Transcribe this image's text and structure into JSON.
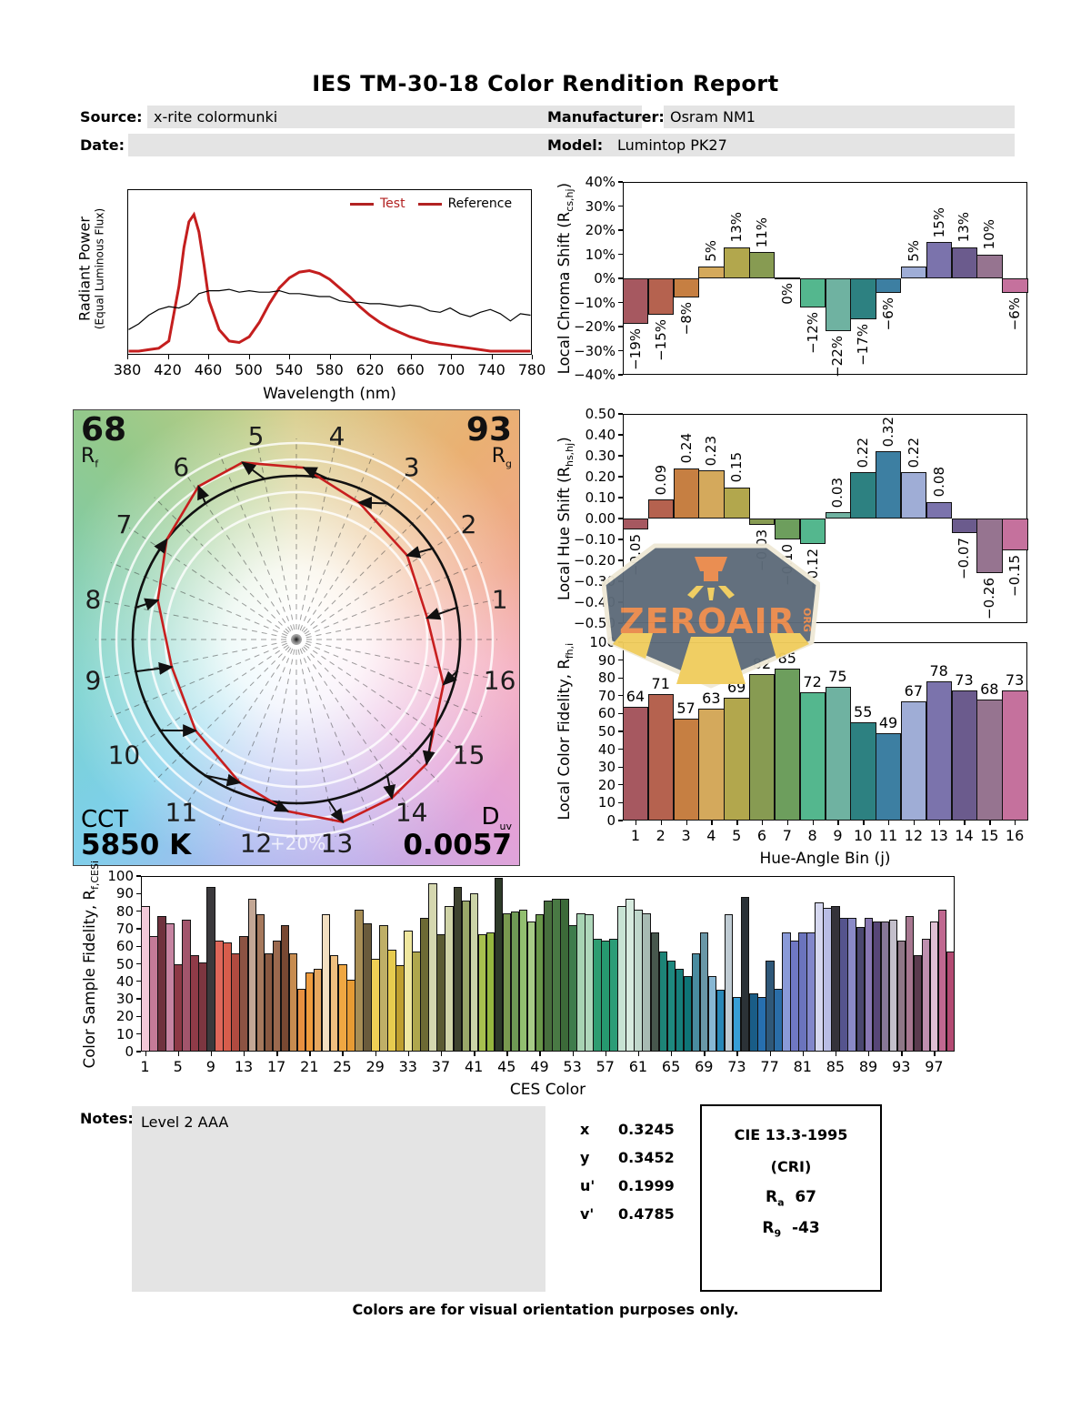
{
  "title": "IES TM-30-18 Color Rendition Report",
  "meta": {
    "source_label": "Source:",
    "source_value": "x-rite colormunki",
    "date_label": "Date:",
    "date_value": "",
    "manufacturer_label": "Manufacturer:",
    "manufacturer_value": "Osram NM1",
    "model_label": "Model:",
    "model_value": "Lumintop PK27"
  },
  "cvg": {
    "rf_value": "68",
    "rf_base": "R",
    "rf_sub": "f",
    "rg_value": "93",
    "rg_base": "R",
    "rg_sub": "g",
    "cct_label": "CCT",
    "cct_value": "5850 K",
    "duv_base": "D",
    "duv_sub": "uv",
    "duv_value": "0.0057",
    "ring_label": "+20%",
    "bins": [
      "1",
      "2",
      "3",
      "4",
      "5",
      "6",
      "7",
      "8",
      "9",
      "10",
      "11",
      "12",
      "13",
      "14",
      "15",
      "16"
    ]
  },
  "watermark": {
    "name": "ZEROAIR",
    "org": "ORG"
  },
  "notes": {
    "label": "Notes:",
    "value": "Level 2 AAA"
  },
  "chromaticity": [
    {
      "label": "x",
      "value": "0.3245"
    },
    {
      "label": "y",
      "value": "0.3452"
    },
    {
      "label": "u'",
      "value": "0.1999"
    },
    {
      "label": "v'",
      "value": "0.4785"
    }
  ],
  "cri": {
    "title": "CIE 13.3-1995",
    "subtitle": "(CRI)",
    "ra_base": "R",
    "ra_sub": "a",
    "ra_value": "67",
    "r9_base": "R",
    "r9_sub": "9",
    "r9_value": "-43"
  },
  "footer": "Colors are for visual orientation purposes only.",
  "bin_colors": [
    "#a65860",
    "#b5624f",
    "#c67f42",
    "#d4a95c",
    "#b2a74d",
    "#879b52",
    "#6d9e5d",
    "#54b78e",
    "#6fb2a1",
    "#2d8181",
    "#3d7fa2",
    "#9fadd6",
    "#7b73ac",
    "#6b5b8d",
    "#967490",
    "#c5719d"
  ],
  "chart_data": [
    {
      "id": "spd",
      "type": "line",
      "xlabel": "Wavelength (nm)",
      "ylabel_lines": [
        "Radiant Power",
        "(Equal Luminous Flux)"
      ],
      "xlim": [
        380,
        780
      ],
      "x_ticks": [
        380,
        420,
        460,
        500,
        540,
        580,
        620,
        660,
        700,
        740,
        780
      ],
      "legend": [
        {
          "label": "Test",
          "text_color": "#b22222"
        },
        {
          "label": "Reference",
          "text_color": "#000000"
        }
      ],
      "series": [
        {
          "name": "Test",
          "color": "#c41e1e",
          "width": 3,
          "x": [
            380,
            390,
            400,
            410,
            420,
            430,
            435,
            440,
            445,
            450,
            455,
            460,
            470,
            480,
            490,
            500,
            510,
            520,
            530,
            540,
            550,
            560,
            570,
            580,
            590,
            600,
            610,
            620,
            630,
            640,
            650,
            660,
            670,
            680,
            690,
            700,
            710,
            720,
            730,
            740,
            750,
            760,
            770,
            780
          ],
          "values": [
            0,
            0,
            0.01,
            0.02,
            0.07,
            0.45,
            0.72,
            0.9,
            0.95,
            0.83,
            0.6,
            0.35,
            0.15,
            0.07,
            0.06,
            0.1,
            0.2,
            0.33,
            0.44,
            0.51,
            0.55,
            0.56,
            0.54,
            0.5,
            0.44,
            0.38,
            0.31,
            0.25,
            0.2,
            0.16,
            0.13,
            0.1,
            0.08,
            0.06,
            0.05,
            0.04,
            0.03,
            0.02,
            0.01,
            0,
            0,
            0,
            0,
            0
          ]
        },
        {
          "name": "Reference",
          "color": "#000000",
          "width": 1.2,
          "x": [
            380,
            390,
            400,
            410,
            420,
            430,
            440,
            450,
            460,
            470,
            480,
            490,
            500,
            510,
            520,
            530,
            540,
            550,
            560,
            570,
            580,
            590,
            600,
            610,
            620,
            630,
            640,
            650,
            660,
            670,
            680,
            690,
            700,
            710,
            720,
            730,
            740,
            750,
            760,
            770,
            780
          ],
          "values": [
            0.15,
            0.19,
            0.25,
            0.29,
            0.31,
            0.3,
            0.33,
            0.4,
            0.42,
            0.42,
            0.43,
            0.41,
            0.42,
            0.41,
            0.41,
            0.42,
            0.4,
            0.4,
            0.39,
            0.38,
            0.38,
            0.35,
            0.34,
            0.34,
            0.33,
            0.33,
            0.32,
            0.31,
            0.32,
            0.31,
            0.28,
            0.27,
            0.3,
            0.26,
            0.24,
            0.27,
            0.29,
            0.26,
            0.21,
            0.26,
            0.25
          ]
        }
      ]
    },
    {
      "id": "chroma",
      "type": "bar",
      "ylabel": [
        "Local Chroma Shift (R",
        "cs,hj",
        ")"
      ],
      "ylim": [
        -40,
        40
      ],
      "yticks": [
        "40%",
        "30%",
        "20%",
        "10%",
        "0%",
        "−10%",
        "−20%",
        "−30%",
        "−40%"
      ],
      "categories": [
        1,
        2,
        3,
        4,
        5,
        6,
        7,
        8,
        9,
        10,
        11,
        12,
        13,
        14,
        15,
        16
      ],
      "values": [
        -19,
        -15,
        -8,
        5,
        13,
        11,
        0,
        -12,
        -22,
        -17,
        -6,
        5,
        15,
        13,
        10,
        -6
      ],
      "labels": [
        "−19%",
        "−15%",
        "−8%",
        "5%",
        "13%",
        "11%",
        "0%",
        "−12%",
        "−22%",
        "−17%",
        "−6%",
        "5%",
        "15%",
        "13%",
        "10%",
        "−6%"
      ],
      "label_rotated": true
    },
    {
      "id": "hue",
      "type": "bar",
      "ylabel": [
        "Local Hue Shift (R",
        "hs,hj",
        ")"
      ],
      "ylim": [
        -0.5,
        0.5
      ],
      "yticks": [
        "0.50",
        "0.40",
        "0.30",
        "0.20",
        "0.10",
        "0.00",
        "−0.10",
        "−0.20",
        "−0.30",
        "−0.40",
        "−0.50"
      ],
      "categories": [
        1,
        2,
        3,
        4,
        5,
        6,
        7,
        8,
        9,
        10,
        11,
        12,
        13,
        14,
        15,
        16
      ],
      "values": [
        -0.05,
        0.09,
        0.24,
        0.23,
        0.15,
        -0.03,
        -0.1,
        -0.12,
        0.03,
        0.22,
        0.32,
        0.22,
        0.08,
        -0.07,
        -0.26,
        -0.15
      ],
      "labels": [
        "−0.05",
        "0.09",
        "0.24",
        "0.23",
        "0.15",
        "−0.03",
        "−0.10",
        "−0.12",
        "0.03",
        "0.22",
        "0.32",
        "0.22",
        "0.08",
        "−0.07",
        "−0.26",
        "−0.15"
      ],
      "label_rotated": true
    },
    {
      "id": "fid",
      "type": "bar",
      "ylabel": [
        "Local Color Fidelity, R",
        "fh,i",
        ""
      ],
      "xlabel": "Hue-Angle Bin (j)",
      "ylim": [
        0,
        100
      ],
      "yticks": [
        "100",
        "90",
        "80",
        "70",
        "60",
        "50",
        "40",
        "30",
        "20",
        "10",
        "0"
      ],
      "categories": [
        "1",
        "2",
        "3",
        "4",
        "5",
        "6",
        "7",
        "8",
        "9",
        "10",
        "11",
        "12",
        "13",
        "14",
        "15",
        "16"
      ],
      "values": [
        64,
        71,
        57,
        63,
        69,
        82,
        85,
        72,
        75,
        55,
        49,
        67,
        78,
        73,
        68,
        73
      ],
      "labels": [
        "64",
        "71",
        "57",
        "63",
        "69",
        "82",
        "85",
        "72",
        "75",
        "55",
        "49",
        "67",
        "78",
        "73",
        "68",
        "73"
      ],
      "label_rotated": false
    },
    {
      "id": "ces",
      "type": "bar",
      "ylabel": [
        "Color Sample Fidelity, R",
        "f,CESi",
        ""
      ],
      "xlabel": "CES Color",
      "ylim": [
        0,
        100
      ],
      "yticks": [
        "100",
        "90",
        "80",
        "70",
        "60",
        "50",
        "40",
        "30",
        "20",
        "10",
        "0"
      ],
      "xtick_positions": [
        1,
        5,
        9,
        13,
        17,
        21,
        25,
        29,
        33,
        37,
        41,
        45,
        49,
        53,
        57,
        61,
        65,
        69,
        73,
        77,
        81,
        85,
        89,
        93,
        97
      ],
      "values": [
        83,
        66,
        77,
        73,
        50,
        75,
        55,
        51,
        94,
        63,
        62,
        56,
        66,
        87,
        78,
        56,
        63,
        72,
        56,
        36,
        45,
        47,
        78,
        55,
        50,
        41,
        81,
        73,
        53,
        72,
        58,
        49,
        69,
        57,
        76,
        96,
        67,
        83,
        94,
        86,
        90,
        67,
        68,
        99,
        79,
        80,
        81,
        74,
        78,
        86,
        87,
        87,
        72,
        79,
        78,
        64,
        63,
        64,
        83,
        87,
        81,
        79,
        68,
        57,
        52,
        47,
        43,
        56,
        68,
        43,
        35,
        78,
        31,
        88,
        33,
        31,
        52,
        36,
        68,
        63,
        68,
        68,
        85,
        82,
        83,
        76,
        76,
        71,
        76,
        74,
        74,
        75,
        63,
        77,
        55,
        64,
        74,
        81,
        57
      ],
      "colors": [
        "#f3c9d8",
        "#c47b98",
        "#6f323e",
        "#c684a2",
        "#8d3946",
        "#a2556c",
        "#8f3b48",
        "#7c3640",
        "#3b393c",
        "#df675a",
        "#d75d4c",
        "#b04a40",
        "#8c5343",
        "#c3a795",
        "#a6795d",
        "#895941",
        "#9b694e",
        "#784832",
        "#c78c50",
        "#e89040",
        "#ef9b3d",
        "#e7a75f",
        "#f2dfc1",
        "#efbf7f",
        "#efa742",
        "#e79b34",
        "#a88e55",
        "#6a5b3c",
        "#efcf55",
        "#bfaf67",
        "#e7cb4f",
        "#bf9f2f",
        "#efe79f",
        "#afa74d",
        "#6d6a34",
        "#d5d7af",
        "#5b5b33",
        "#cfd3a7",
        "#3e432f",
        "#99a769",
        "#cbd3a7",
        "#a7bf4f",
        "#95b73f",
        "#2d3a29",
        "#79994f",
        "#6e9954",
        "#92bf70",
        "#a7cb87",
        "#699749",
        "#476f3d",
        "#497944",
        "#3c6a39",
        "#3e7c4c",
        "#a7d3b3",
        "#afd7bb",
        "#2e9d71",
        "#26996f",
        "#2c9d77",
        "#c7e3d3",
        "#d7ebdf",
        "#bfd7cb",
        "#a7bbb3",
        "#47574d",
        "#1d8477",
        "#1e897f",
        "#167f7b",
        "#0e7577",
        "#498b9f",
        "#6997a7",
        "#87b7d3",
        "#2787b7",
        "#bfcbd3",
        "#379fd7",
        "#2b3237",
        "#195d87",
        "#276faf",
        "#2f5879",
        "#2a6da7",
        "#8a9ad8",
        "#6f78c3",
        "#6b74bd",
        "#8287cb",
        "#d5d7ef",
        "#b9bde5",
        "#35333a",
        "#55548e",
        "#8a8ac7",
        "#4b4770",
        "#8877b3",
        "#574677",
        "#877797",
        "#c3bfcb",
        "#8f7787",
        "#a77790",
        "#5b3b4f",
        "#bf8faf",
        "#dfbfd3",
        "#c06890",
        "#b34a72"
      ]
    }
  ]
}
